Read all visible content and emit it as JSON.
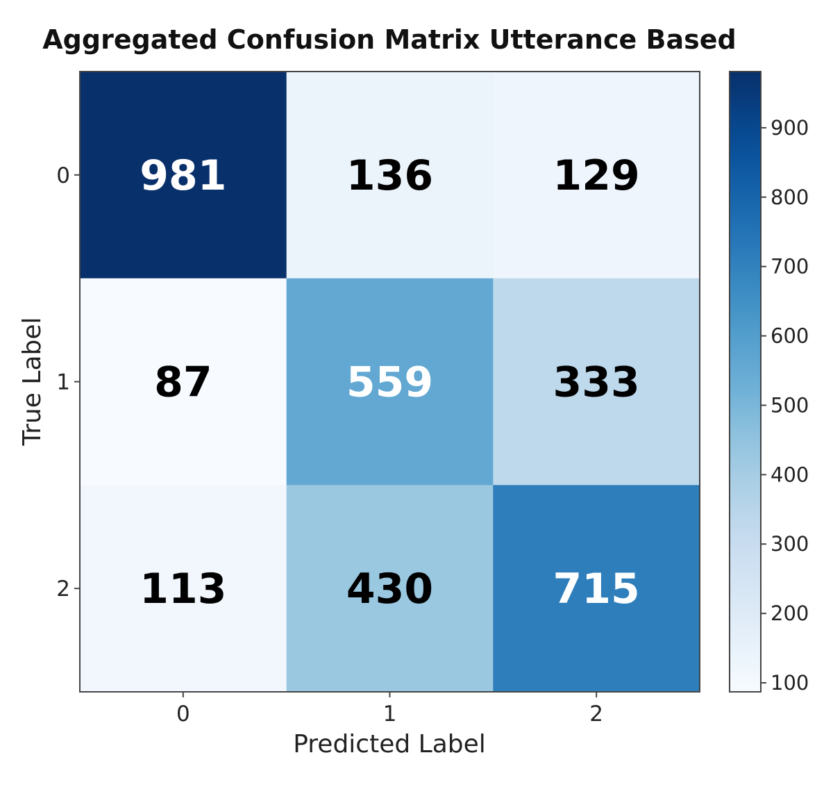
{
  "chart_data": {
    "type": "heatmap",
    "title": "Aggregated Confusion Matrix Utterance Based",
    "xlabel": "Predicted Label",
    "ylabel": "True Label",
    "x_categories": [
      "0",
      "1",
      "2"
    ],
    "y_categories": [
      "0",
      "1",
      "2"
    ],
    "matrix": [
      [
        981,
        136,
        129
      ],
      [
        87,
        559,
        333
      ],
      [
        113,
        430,
        715
      ]
    ],
    "colormap": "Blues",
    "color_range": [
      87,
      981
    ],
    "colorbar_ticks": [
      900,
      800,
      700,
      600,
      500,
      400,
      300,
      200,
      100
    ],
    "annotation_colors": {
      "dark_cell_text": "#ffffff",
      "light_cell_text": "#000000"
    }
  }
}
